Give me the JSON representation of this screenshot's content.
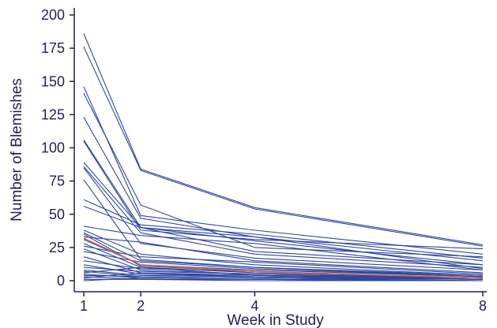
{
  "chart_data": {
    "type": "line",
    "xlabel": "Week in Study",
    "ylabel": "Number of Blemishes",
    "x": [
      1,
      2,
      4,
      8
    ],
    "xticks": [
      "1",
      "2",
      "4",
      "8"
    ],
    "yticks": [
      "0",
      "25",
      "50",
      "75",
      "100",
      "125",
      "150",
      "175",
      "200"
    ],
    "xlim": [
      1,
      8
    ],
    "ylim": [
      0,
      200
    ],
    "grid": false,
    "legend": "none",
    "colors": {
      "subjects": "#2f47a0",
      "mean": "#d9634a",
      "axis": "#2b1c4f"
    },
    "series": [
      {
        "values": [
          186,
          84,
          55,
          27
        ]
      },
      {
        "values": [
          176,
          83,
          54,
          26
        ]
      },
      {
        "values": [
          146,
          49,
          38,
          20
        ]
      },
      {
        "values": [
          141,
          57,
          25,
          18
        ]
      },
      {
        "values": [
          123,
          47,
          33,
          15
        ]
      },
      {
        "values": [
          106,
          40,
          30,
          12
        ]
      },
      {
        "values": [
          105,
          38,
          31,
          24
        ]
      },
      {
        "values": [
          89,
          40,
          22,
          12
        ]
      },
      {
        "values": [
          86,
          36,
          20,
          10
        ]
      },
      {
        "values": [
          85,
          28,
          17,
          8
        ]
      },
      {
        "values": [
          76,
          16,
          10,
          4
        ]
      },
      {
        "values": [
          61,
          42,
          35,
          17
        ]
      },
      {
        "values": [
          56,
          40,
          33,
          9
        ]
      },
      {
        "values": [
          41,
          34,
          28,
          8
        ]
      },
      {
        "values": [
          38,
          20,
          12,
          4
        ]
      },
      {
        "values": [
          36,
          15,
          10,
          3
        ]
      },
      {
        "values": [
          35,
          11,
          7,
          2
        ]
      },
      {
        "values": [
          33,
          29,
          15,
          6
        ]
      },
      {
        "values": [
          31,
          12,
          8,
          3
        ]
      },
      {
        "values": [
          28,
          10,
          6,
          2
        ]
      },
      {
        "values": [
          26,
          18,
          14,
          5
        ]
      },
      {
        "values": [
          24,
          8,
          5,
          1
        ]
      },
      {
        "values": [
          22,
          14,
          9,
          3
        ]
      },
      {
        "values": [
          18,
          6,
          4,
          1
        ]
      },
      {
        "values": [
          15,
          9,
          7,
          2
        ]
      },
      {
        "values": [
          12,
          5,
          3,
          1
        ]
      },
      {
        "values": [
          10,
          7,
          5,
          2
        ]
      },
      {
        "values": [
          8,
          4,
          3,
          1
        ]
      },
      {
        "values": [
          7,
          3,
          2,
          0
        ]
      },
      {
        "values": [
          6,
          10,
          4,
          2
        ]
      },
      {
        "values": [
          5,
          2,
          1,
          0
        ]
      },
      {
        "values": [
          4,
          3,
          2,
          1
        ]
      },
      {
        "values": [
          3,
          1,
          1,
          0
        ]
      },
      {
        "values": [
          2,
          6,
          3,
          1
        ]
      },
      {
        "values": [
          1,
          1,
          0,
          0
        ]
      },
      {
        "values": [
          0,
          2,
          1,
          0
        ]
      },
      {
        "values": [
          32,
          12,
          7,
          2
        ],
        "highlight": true
      }
    ]
  }
}
